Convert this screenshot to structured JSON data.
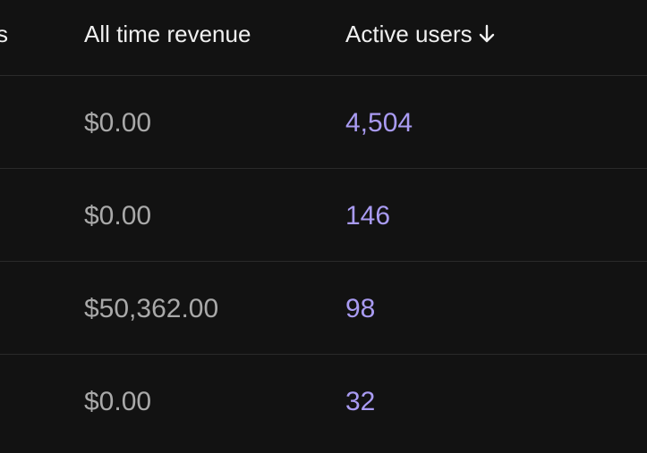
{
  "table": {
    "columns": {
      "partial_label": "s",
      "revenue_label": "All time revenue",
      "users_label": "Active users",
      "sort_icon": "arrow-down-icon"
    },
    "rows": [
      {
        "revenue": "$0.00",
        "active_users": "4,504"
      },
      {
        "revenue": "$0.00",
        "active_users": "146"
      },
      {
        "revenue": "$50,362.00",
        "active_users": "98"
      },
      {
        "revenue": "$0.00",
        "active_users": "32"
      }
    ]
  },
  "colors": {
    "background": "#121212",
    "header_text": "#f0f0f0",
    "revenue_text": "#a9a9a9",
    "users_text": "#a99bf2",
    "divider": "#2a2a2a"
  }
}
